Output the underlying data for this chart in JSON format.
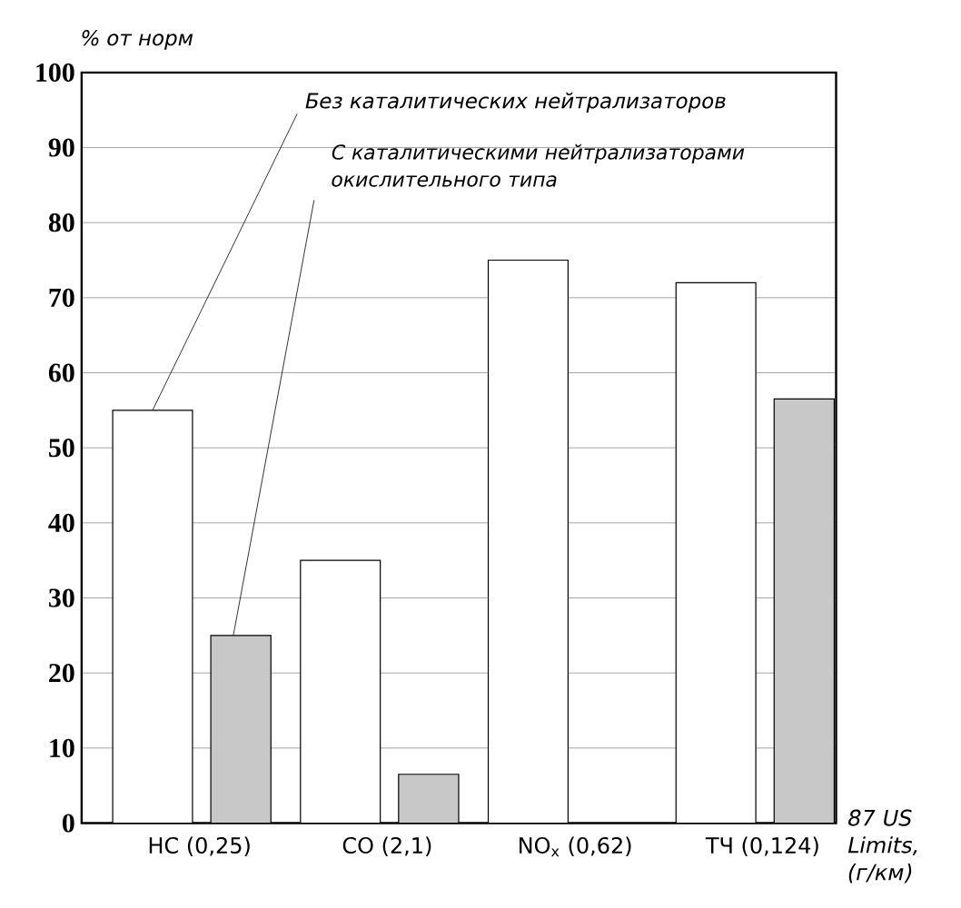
{
  "chart_data": {
    "type": "bar",
    "xlabel": "87 US Limits, (г/км)",
    "ylabel": "% от норм",
    "categories": [
      "HC (0,25)",
      "CO (2,1)",
      "NO$_{x}$ (0,62)",
      "ТЧ (0,124)"
    ],
    "series": [
      {
        "name": "Без каталитических нейтрализаторов",
        "color": "#ffffff",
        "values": [
          55,
          35,
          75,
          72
        ]
      },
      {
        "name": "С каталитическими нейтрализаторами окислительного типа",
        "color": "#c8c8c8",
        "values": [
          25,
          6.5,
          null,
          56.5
        ]
      }
    ],
    "ylim": [
      0,
      100
    ],
    "yticks": [
      0,
      10,
      20,
      30,
      40,
      50,
      60,
      70,
      80,
      90,
      100
    ],
    "grid": "y"
  }
}
